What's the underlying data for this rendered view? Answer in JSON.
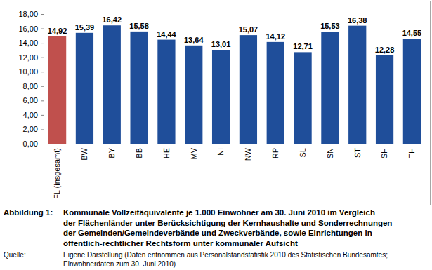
{
  "chart_data": {
    "type": "bar",
    "categories": [
      "FL (insgesamt)",
      "BW",
      "BY",
      "BB",
      "HE",
      "MV",
      "NI",
      "NW",
      "RP",
      "SL",
      "SN",
      "ST",
      "SH",
      "TH"
    ],
    "values": [
      14.92,
      15.39,
      16.42,
      15.58,
      14.44,
      13.64,
      13.01,
      15.07,
      14.12,
      12.71,
      15.53,
      16.38,
      12.28,
      14.55
    ],
    "value_labels": [
      "14,92",
      "15,39",
      "16,42",
      "15,58",
      "14,44",
      "13,64",
      "13,01",
      "15,07",
      "14,12",
      "12,71",
      "15,53",
      "16,38",
      "12,28",
      "14,55"
    ],
    "colors": [
      "#c0504d",
      "#1f4e9a",
      "#1f4e9a",
      "#1f4e9a",
      "#1f4e9a",
      "#1f4e9a",
      "#1f4e9a",
      "#1f4e9a",
      "#1f4e9a",
      "#1f4e9a",
      "#1f4e9a",
      "#1f4e9a",
      "#1f4e9a",
      "#1f4e9a"
    ],
    "ylim": [
      0,
      18
    ],
    "yticks": [
      {
        "value": 0,
        "label": "0,00"
      },
      {
        "value": 2,
        "label": "2,00"
      },
      {
        "value": 4,
        "label": "4,00"
      },
      {
        "value": 6,
        "label": "6,00"
      },
      {
        "value": 8,
        "label": "8,00"
      },
      {
        "value": 10,
        "label": "10,00"
      },
      {
        "value": 12,
        "label": "12,00"
      },
      {
        "value": 14,
        "label": "14,00"
      },
      {
        "value": 16,
        "label": "16,00"
      },
      {
        "value": 18,
        "label": "18,00"
      }
    ],
    "grid": false,
    "data_labels": true,
    "caption_label": "Abbildung 1:",
    "caption": [
      "Kommunale Vollzeitäquivalente je 1.000 Einwohner am 30. Juni 2010 im Vergleich",
      "der Flächenländer unter Berücksichtigung der Kernhaushalte und Sonderrechnungen",
      "der Gemeinden/Gemeindeverbände und Zweckverbände, sowie Einrichtungen in",
      "öffentlich-rechtlicher Rechtsform unter kommunaler Aufsicht"
    ],
    "source_label": "Quelle:",
    "source": [
      "Eigene Darstellung (Daten entnommen aus Personalstandstatistik 2010 des Statistischen Bundesamtes;",
      "Einwohnerdaten zum 30. Juni 2010)"
    ]
  }
}
